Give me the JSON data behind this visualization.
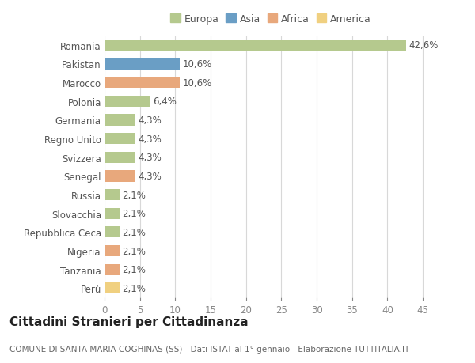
{
  "categories": [
    "Romania",
    "Pakistan",
    "Marocco",
    "Polonia",
    "Germania",
    "Regno Unito",
    "Svizzera",
    "Senegal",
    "Russia",
    "Slovacchia",
    "Repubblica Ceca",
    "Nigeria",
    "Tanzania",
    "Perù"
  ],
  "values": [
    42.6,
    10.6,
    10.6,
    6.4,
    4.3,
    4.3,
    4.3,
    4.3,
    2.1,
    2.1,
    2.1,
    2.1,
    2.1,
    2.1
  ],
  "labels": [
    "42,6%",
    "10,6%",
    "10,6%",
    "6,4%",
    "4,3%",
    "4,3%",
    "4,3%",
    "4,3%",
    "2,1%",
    "2,1%",
    "2,1%",
    "2,1%",
    "2,1%",
    "2,1%"
  ],
  "colors": [
    "#b5c98e",
    "#6a9ec5",
    "#e8a87c",
    "#b5c98e",
    "#b5c98e",
    "#b5c98e",
    "#b5c98e",
    "#e8a87c",
    "#b5c98e",
    "#b5c98e",
    "#b5c98e",
    "#e8a87c",
    "#e8a87c",
    "#f0d080"
  ],
  "legend_labels": [
    "Europa",
    "Asia",
    "Africa",
    "America"
  ],
  "legend_colors": [
    "#b5c98e",
    "#6a9ec5",
    "#e8a87c",
    "#f0d080"
  ],
  "title": "Cittadini Stranieri per Cittadinanza",
  "subtitle": "COMUNE DI SANTA MARIA COGHINAS (SS) - Dati ISTAT al 1° gennaio - Elaborazione TUTTITALIA.IT",
  "xlim": [
    0,
    47
  ],
  "xticks": [
    0,
    5,
    10,
    15,
    20,
    25,
    30,
    35,
    40,
    45
  ],
  "background_color": "#ffffff",
  "grid_color": "#d8d8d8",
  "bar_height": 0.6,
  "label_fontsize": 8.5,
  "tick_fontsize": 8.5,
  "title_fontsize": 11,
  "subtitle_fontsize": 7.5,
  "legend_fontsize": 9
}
